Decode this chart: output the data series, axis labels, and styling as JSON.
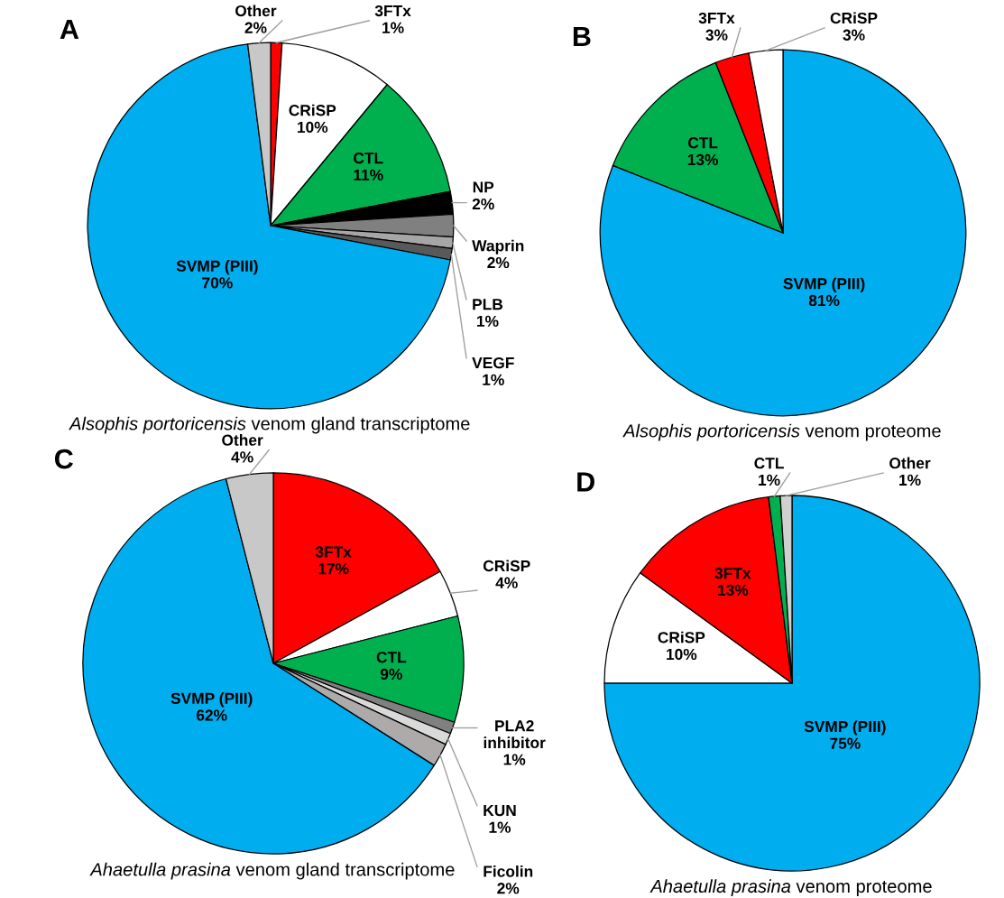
{
  "chart_data": [
    {
      "type": "pie",
      "title": "A",
      "xlabel": "Alsophis portoricensis venom gland transcriptome",
      "legend": false,
      "categories": [
        "3FTx",
        "CRiSP",
        "CTL",
        "NP",
        "Waprin",
        "PLB",
        "VEGF",
        "SVMP (PIII)",
        "Other"
      ],
      "values": [
        1,
        10,
        11,
        2,
        2,
        1,
        1,
        70,
        2
      ],
      "value_labels": [
        "1%",
        "10%",
        "11%",
        "2%",
        "2%",
        "1%",
        "1%",
        "70%",
        "2%"
      ],
      "colors": [
        "#ff0000",
        "#ffffff",
        "#00b04f",
        "#000000",
        "#808080",
        "#a6a6a6",
        "#595959",
        "#00adef",
        "#c8c8c8"
      ]
    },
    {
      "type": "pie",
      "title": "B",
      "xlabel": "Alsophis portoricensis venom proteome",
      "legend": false,
      "categories": [
        "SVMP (PIII)",
        "CTL",
        "3FTx",
        "CRiSP"
      ],
      "values": [
        81,
        13,
        3,
        3
      ],
      "value_labels": [
        "81%",
        "13%",
        "3%",
        "3%"
      ],
      "colors": [
        "#00adef",
        "#00b04f",
        "#ff0000",
        "#ffffff"
      ]
    },
    {
      "type": "pie",
      "title": "C",
      "xlabel": "Ahaetulla prasina venom gland transcriptome",
      "legend": false,
      "categories": [
        "3FTx",
        "CRiSP",
        "CTL",
        "PLA2 inhibitor",
        "KUN",
        "Ficolin",
        "SVMP (PIII)",
        "Other"
      ],
      "values": [
        17,
        4,
        9,
        1,
        1,
        2,
        62,
        4
      ],
      "value_labels": [
        "17%",
        "4%",
        "9%",
        "1%",
        "1%",
        "2%",
        "62%",
        "4%"
      ],
      "colors": [
        "#ff0000",
        "#ffffff",
        "#00b04f",
        "#808080",
        "#d9d9d9",
        "#aeaaaa",
        "#00adef",
        "#c8c8c8"
      ]
    },
    {
      "type": "pie",
      "title": "D",
      "xlabel": "Ahaetulla prasina venom proteome",
      "legend": false,
      "categories": [
        "SVMP (PIII)",
        "CRiSP",
        "3FTx",
        "CTL",
        "Other"
      ],
      "values": [
        75,
        10,
        13,
        1,
        1
      ],
      "value_labels": [
        "75%",
        "10%",
        "13%",
        "1%",
        "1%"
      ],
      "colors": [
        "#00adef",
        "#ffffff",
        "#ff0000",
        "#00b04f",
        "#d0d0d0"
      ]
    }
  ]
}
